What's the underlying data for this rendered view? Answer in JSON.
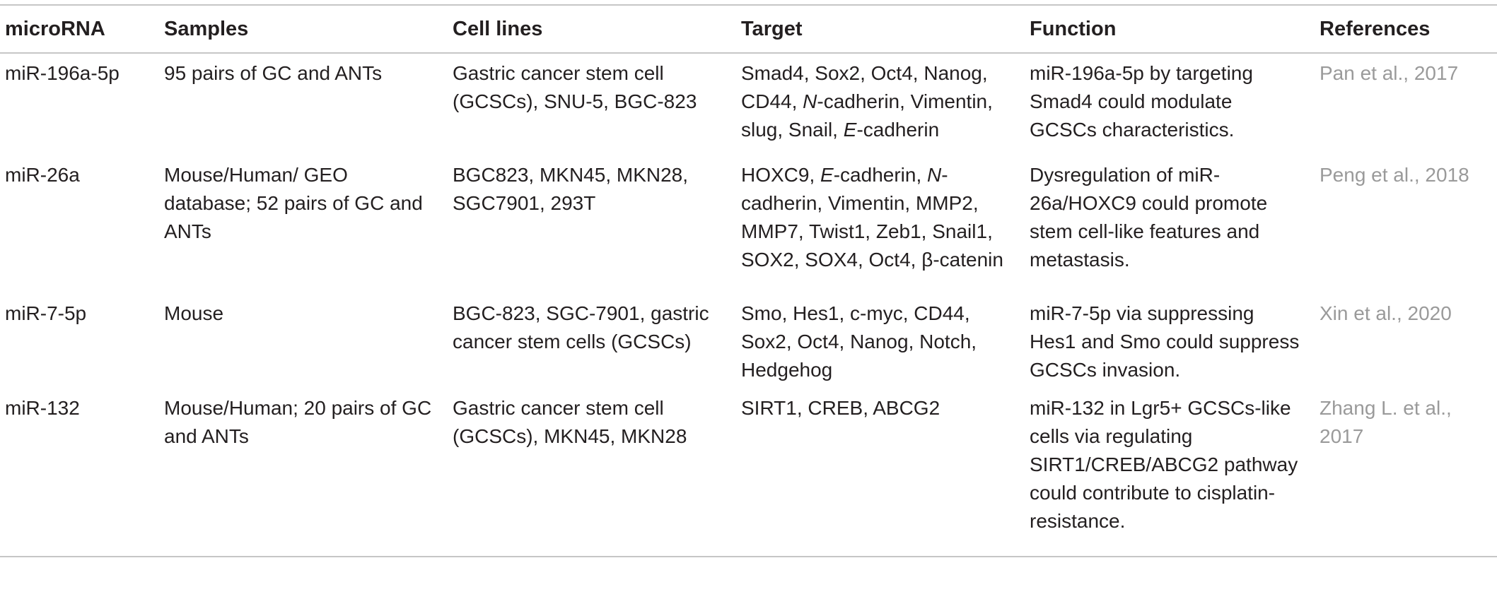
{
  "table": {
    "headers": [
      "microRNA",
      "Samples",
      "Cell lines",
      "Target",
      "Function",
      "References"
    ],
    "rows": [
      {
        "microrna": "miR-196a-5p",
        "samples": "95 pairs of GC and ANTs",
        "cell_lines": "Gastric cancer stem cell (GCSCs), SNU-5, BGC-823",
        "target": {
          "a": "Smad4, Sox2, Oct4, Nanog, CD44, ",
          "b": "N",
          "c": "-cadherin, Vimentin, slug, Snail, ",
          "d": "E",
          "e": "-cadherin"
        },
        "function": "miR-196a-5p by targeting Smad4 could modulate GCSCs characteristics.",
        "reference": "Pan et al., 2017"
      },
      {
        "microrna": "miR-26a",
        "samples": "Mouse/Human/ GEO database; 52 pairs of GC and ANTs",
        "cell_lines": "BGC823, MKN45, MKN28, SGC7901, 293T",
        "target": {
          "a": "HOXC9, ",
          "b": "E",
          "c": "-cadherin, ",
          "d": "N",
          "e": "-cadherin, Vimentin, MMP2, MMP7, Twist1, Zeb1, Snail1, SOX2, SOX4, Oct4, β-catenin"
        },
        "function": "Dysregulation of miR-26a/HOXC9 could promote stem cell-like features and metastasis.",
        "reference": "Peng et al., 2018"
      },
      {
        "microrna": "miR-7-5p",
        "samples": "Mouse",
        "cell_lines": "BGC-823, SGC-7901, gastric cancer stem cells (GCSCs)",
        "target": "Smo, Hes1, c-myc, CD44, Sox2, Oct4, Nanog, Notch, Hedgehog",
        "function": "miR-7-5p via suppressing Hes1 and Smo could suppress GCSCs invasion.",
        "reference": "Xin et al., 2020"
      },
      {
        "microrna": "miR-132",
        "samples": "Mouse/Human; 20 pairs of GC and ANTs",
        "cell_lines": "Gastric cancer stem cell (GCSCs), MKN45, MKN28",
        "target": "SIRT1, CREB, ABCG2",
        "function": "miR-132 in Lgr5+ GCSCs-like cells via regulating SIRT1/CREB/ABCG2 pathway could contribute to cisplatin-resistance.",
        "reference": "Zhang L. et al., 2017"
      }
    ]
  }
}
